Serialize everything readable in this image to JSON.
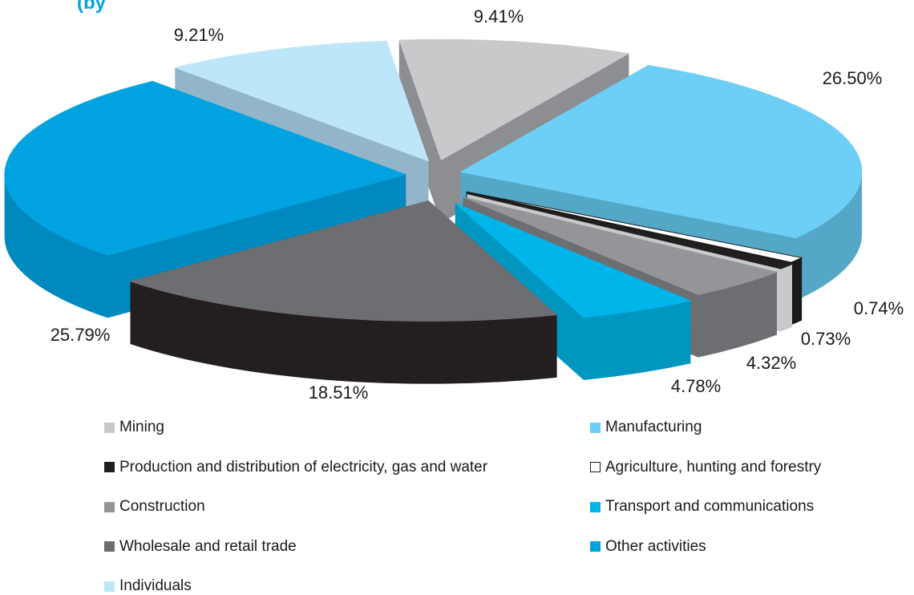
{
  "chart_data": {
    "type": "pie",
    "slices": [
      {
        "label": "Mining",
        "value": 9.41,
        "value_label": "9.41%",
        "color": "#c8c9cb",
        "side_color": "#8c8e91"
      },
      {
        "label": "Manufacturing",
        "value": 26.5,
        "value_label": "26.50%",
        "color": "#6dcff6",
        "side_color": "#55a7c7"
      },
      {
        "label": "Agriculture, hunting and forestry",
        "value": 0.74,
        "value_label": "0.74%",
        "color": "#ffffff",
        "side_color": "#1a1a1a"
      },
      {
        "label": "Production and distribution of electricity, gas and water",
        "value": 0.73,
        "value_label": "0.73%",
        "color": "#231f20",
        "side_color": "#c8c9cb"
      },
      {
        "label": "Construction",
        "value": 4.32,
        "value_label": "4.32%",
        "color": "#939598",
        "side_color": "#6d6e71"
      },
      {
        "label": "Transport and communications",
        "value": 4.78,
        "value_label": "4.78%",
        "color": "#00b5e9",
        "side_color": "#0096c0"
      },
      {
        "label": "Wholesale and retail trade",
        "value": 18.51,
        "value_label": "18.51%",
        "color": "#6d6e71",
        "side_color": "#231f20"
      },
      {
        "label": "Other activities",
        "value": 25.79,
        "value_label": "25.79%",
        "color": "#00a3e0",
        "side_color": "#0089bf"
      },
      {
        "label": "Individuals",
        "value": 9.21,
        "value_label": "9.21%",
        "color": "#bde6f8",
        "side_color": "#92b5c9"
      }
    ],
    "legend": [
      {
        "label": "Mining",
        "color": "#c8c9cb"
      },
      {
        "label": "Manufacturing",
        "color": "#6dcff6"
      },
      {
        "label": "Production and distribution of electricity, gas and water",
        "color": "#231f20"
      },
      {
        "label": "Agriculture, hunting and forestry",
        "color": "#ffffff"
      },
      {
        "label": "Construction",
        "color": "#939598"
      },
      {
        "label": "Transport and communications",
        "color": "#00b5e9"
      },
      {
        "label": "Wholesale and retail trade",
        "color": "#6d6e71"
      },
      {
        "label": "Other activities",
        "color": "#00a3e0"
      },
      {
        "label": "Individuals",
        "color": "#bde6f8"
      }
    ],
    "legend_placement": "bottom",
    "exploded": true,
    "three_d": true
  },
  "title_fragment": "(by"
}
